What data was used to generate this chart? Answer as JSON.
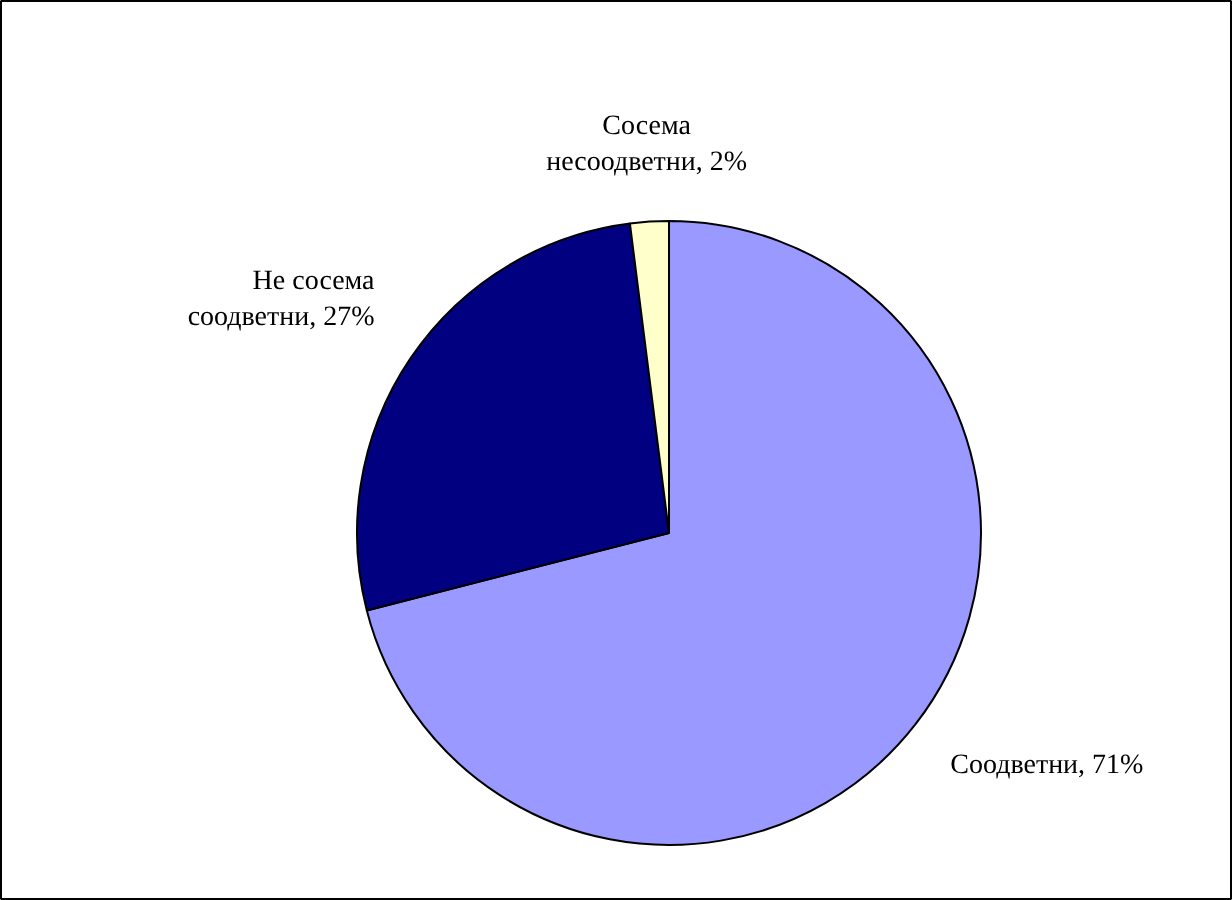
{
  "chart_data": {
    "type": "pie",
    "categories": [
      "Соодветни",
      "Не сосема соодветни",
      "Сосема несоодветни"
    ],
    "values": [
      71,
      27,
      2
    ],
    "colors": [
      "#9999ff",
      "#000080",
      "#ffffcc"
    ],
    "value_labels": [
      "71%",
      "27%",
      "2%"
    ]
  }
}
